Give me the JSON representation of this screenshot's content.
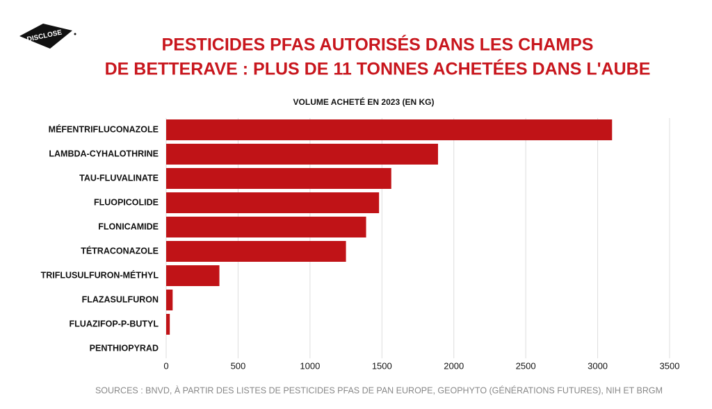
{
  "logo": "DISCLOSE",
  "chart_data": {
    "type": "barh",
    "title": [
      "PESTICIDES PFAS AUTORISÉS DANS LES CHAMPS",
      "DE BETTERAVE : PLUS DE 11 TONNES ACHETÉES DANS L'AUBE"
    ],
    "subtitle": "VOLUME ACHETÉ EN 2023 (EN KG)",
    "categories": [
      "MÉFENTRIFLUCONAZOLE",
      "LAMBDA-CYHALOTHRINE",
      "TAU-FLUVALINATE",
      "FLUOPICOLIDE",
      "FLONICAMIDE",
      "TÉTRACONAZOLE",
      "TRIFLUSULFURON-MÉTHYL",
      "FLAZASULFURON",
      "FLUAZIFOP-P-BUTYL",
      "PENTHIOPYRAD"
    ],
    "values": [
      3100,
      1890,
      1565,
      1480,
      1390,
      1250,
      370,
      45,
      25,
      0
    ],
    "color": "#c01317",
    "xlim": [
      0,
      3500
    ],
    "xticks": [
      0,
      500,
      1000,
      1500,
      2000,
      2500,
      3000,
      3500
    ],
    "grid": true,
    "source": "SOURCES :  BNVD, À PARTIR DES LISTES DE PESTICIDES PFAS DE PAN EUROPE, GEOPHYTO (GÉNÉRATIONS FUTURES), NIH ET BRGM"
  }
}
